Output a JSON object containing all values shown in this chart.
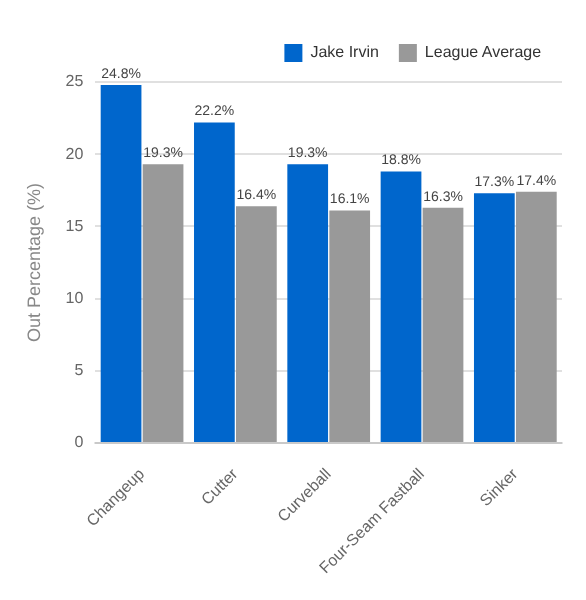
{
  "chart_data": {
    "type": "bar",
    "ylabel": "Out Percentage (%)",
    "categories": [
      "Changeup",
      "Cutter",
      "Curveball",
      "Four-Seam Fastball",
      "Sinker"
    ],
    "series": [
      {
        "name": "Jake Irvin",
        "color": "#0066cc",
        "values": [
          24.8,
          22.2,
          19.3,
          18.8,
          17.3
        ],
        "value_labels": [
          "24.8%",
          "22.2%",
          "19.3%",
          "18.8%",
          "17.3%"
        ]
      },
      {
        "name": "League Average",
        "color": "#999999",
        "values": [
          19.3,
          16.4,
          16.1,
          16.3,
          17.4
        ],
        "value_labels": [
          "19.3%",
          "16.4%",
          "16.1%",
          "16.3%",
          "17.4%"
        ]
      }
    ],
    "ylim": [
      0,
      25
    ],
    "yticks": [
      0,
      5,
      10,
      15,
      20,
      25
    ],
    "grid": "y",
    "legend": "top right"
  }
}
